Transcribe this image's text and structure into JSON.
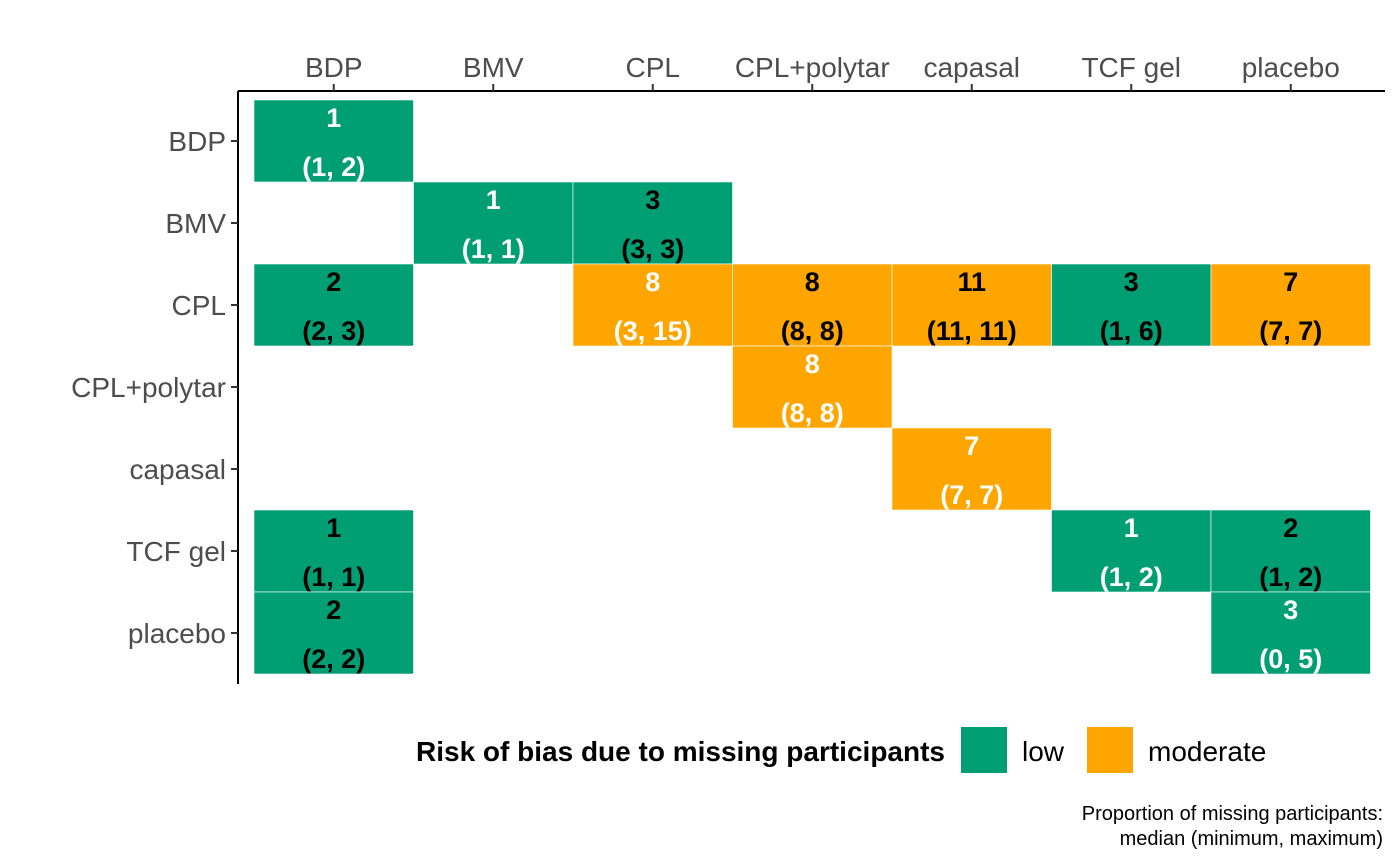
{
  "chart_data": {
    "type": "heatmap",
    "x_categories": [
      "BDP",
      "BMV",
      "CPL",
      "CPL+polytar",
      "capasal",
      "TCF gel",
      "placebo"
    ],
    "y_categories": [
      "BDP",
      "BMV",
      "CPL",
      "CPL+polytar",
      "capasal",
      "TCF gel",
      "placebo"
    ],
    "x_axis_position": "top",
    "cells": [
      {
        "row": "BDP",
        "col": "BDP",
        "median": 1,
        "range": "(1, 2)",
        "risk": "low",
        "text_color": "white"
      },
      {
        "row": "BMV",
        "col": "BMV",
        "median": 1,
        "range": "(1, 1)",
        "risk": "low",
        "text_color": "white"
      },
      {
        "row": "BMV",
        "col": "CPL",
        "median": 3,
        "range": "(3, 3)",
        "risk": "low",
        "text_color": "black"
      },
      {
        "row": "CPL",
        "col": "BDP",
        "median": 2,
        "range": "(2, 3)",
        "risk": "low",
        "text_color": "black"
      },
      {
        "row": "CPL",
        "col": "CPL",
        "median": 8,
        "range": "(3, 15)",
        "risk": "moderate",
        "text_color": "white"
      },
      {
        "row": "CPL",
        "col": "CPL+polytar",
        "median": 8,
        "range": "(8, 8)",
        "risk": "moderate",
        "text_color": "black"
      },
      {
        "row": "CPL",
        "col": "capasal",
        "median": 11,
        "range": "(11, 11)",
        "risk": "moderate",
        "text_color": "black"
      },
      {
        "row": "CPL",
        "col": "TCF gel",
        "median": 3,
        "range": "(1, 6)",
        "risk": "low",
        "text_color": "black"
      },
      {
        "row": "CPL",
        "col": "placebo",
        "median": 7,
        "range": "(7, 7)",
        "risk": "moderate",
        "text_color": "black"
      },
      {
        "row": "CPL+polytar",
        "col": "CPL+polytar",
        "median": 8,
        "range": "(8, 8)",
        "risk": "moderate",
        "text_color": "white"
      },
      {
        "row": "capasal",
        "col": "capasal",
        "median": 7,
        "range": "(7, 7)",
        "risk": "moderate",
        "text_color": "white"
      },
      {
        "row": "TCF gel",
        "col": "BDP",
        "median": 1,
        "range": "(1, 1)",
        "risk": "low",
        "text_color": "black"
      },
      {
        "row": "TCF gel",
        "col": "TCF gel",
        "median": 1,
        "range": "(1, 2)",
        "risk": "low",
        "text_color": "white"
      },
      {
        "row": "TCF gel",
        "col": "placebo",
        "median": 2,
        "range": "(1, 2)",
        "risk": "low",
        "text_color": "black"
      },
      {
        "row": "placebo",
        "col": "BDP",
        "median": 2,
        "range": "(2, 2)",
        "risk": "low",
        "text_color": "black"
      },
      {
        "row": "placebo",
        "col": "placebo",
        "median": 3,
        "range": "(0, 5)",
        "risk": "low",
        "text_color": "white"
      }
    ],
    "colors": {
      "low": "#009E73",
      "moderate": "#FFA500"
    },
    "legend": {
      "title": "Risk of bias due to missing participants",
      "placement": "bottom",
      "entries": [
        {
          "key": "low",
          "label": "low"
        },
        {
          "key": "moderate",
          "label": "moderate"
        }
      ]
    },
    "caption_lines": [
      "Proportion of missing participants:",
      "median (minimum, maximum)"
    ]
  }
}
